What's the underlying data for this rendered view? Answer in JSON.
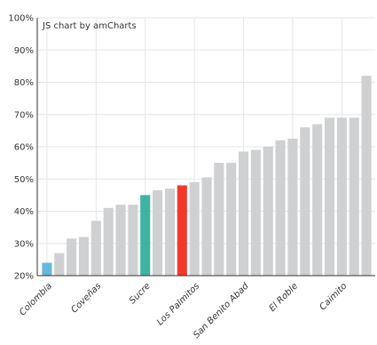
{
  "credit_text": "JS chart by amCharts",
  "colors": {
    "default_bar": "#cfd0d2",
    "highlight_blue": "#67b7dc",
    "highlight_teal": "#3fb3a2",
    "highlight_red": "#f03a2c",
    "grid": "#e6e6e6",
    "axis": "#333333",
    "background": "#ffffff"
  },
  "chart_data": {
    "type": "bar",
    "title": "",
    "xlabel": "",
    "ylabel": "",
    "ylim": [
      20,
      100
    ],
    "y_ticks": [
      "20%",
      "30%",
      "40%",
      "50%",
      "60%",
      "70%",
      "80%",
      "90%",
      "100%"
    ],
    "y_tick_values": [
      20,
      30,
      40,
      50,
      60,
      70,
      80,
      90,
      100
    ],
    "grid": true,
    "x_tick_labels_shown": [
      "Colombia",
      "Coveñas",
      "Sucre",
      "Los Palmitos",
      "San Benito Abad",
      "El Roble",
      "Caimito"
    ],
    "x_tick_label_bar_index": [
      0,
      4,
      8,
      12,
      16,
      20,
      24
    ],
    "values": [
      24,
      27,
      31.5,
      32,
      37,
      41,
      42,
      42,
      45,
      46.5,
      47,
      48,
      49,
      50.5,
      55,
      55,
      58.5,
      59,
      60,
      62,
      62.5,
      66,
      67,
      69,
      69,
      69,
      82
    ],
    "highlights": [
      {
        "bar_index": 0,
        "color": "highlight_blue"
      },
      {
        "bar_index": 8,
        "color": "highlight_teal"
      },
      {
        "bar_index": 11,
        "color": "highlight_red"
      }
    ]
  }
}
